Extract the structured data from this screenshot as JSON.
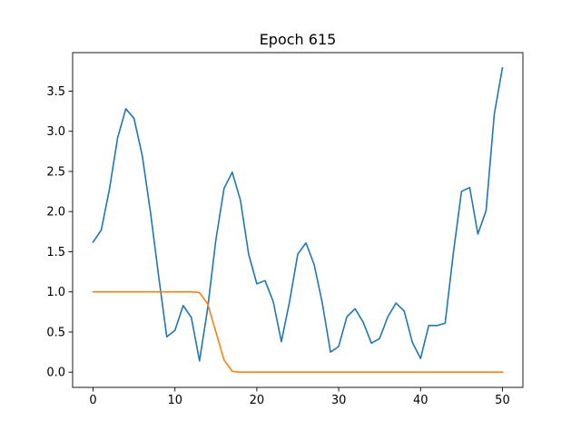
{
  "chart_data": {
    "type": "line",
    "title": "Epoch 615",
    "xlabel": "",
    "ylabel": "",
    "xlim": [
      -2.5,
      52.5
    ],
    "ylim": [
      -0.19,
      3.98
    ],
    "grid": false,
    "x_ticks": [
      0,
      10,
      20,
      30,
      40,
      50
    ],
    "y_ticks": [
      0.0,
      0.5,
      1.0,
      1.5,
      2.0,
      2.5,
      3.0,
      3.5
    ],
    "x_tick_labels": [
      "0",
      "10",
      "20",
      "30",
      "40",
      "50"
    ],
    "y_tick_labels": [
      "0.0",
      "0.5",
      "1.0",
      "1.5",
      "2.0",
      "2.5",
      "3.0",
      "3.5"
    ],
    "x": [
      0,
      1,
      2,
      3,
      4,
      5,
      6,
      7,
      8,
      9,
      10,
      11,
      12,
      13,
      14,
      15,
      16,
      17,
      18,
      19,
      20,
      21,
      22,
      23,
      24,
      25,
      26,
      27,
      28,
      29,
      30,
      31,
      32,
      33,
      34,
      35,
      36,
      37,
      38,
      39,
      40,
      41,
      42,
      43,
      44,
      45,
      46,
      47,
      48,
      49,
      50
    ],
    "series": [
      {
        "color": "#1f77b4",
        "values": [
          1.62,
          1.77,
          2.28,
          2.92,
          3.28,
          3.16,
          2.7,
          2.0,
          1.2,
          0.44,
          0.52,
          0.83,
          0.68,
          0.14,
          0.8,
          1.65,
          2.29,
          2.49,
          2.14,
          1.47,
          1.1,
          1.14,
          0.88,
          0.38,
          0.88,
          1.47,
          1.61,
          1.34,
          0.86,
          0.25,
          0.32,
          0.69,
          0.79,
          0.62,
          0.36,
          0.42,
          0.69,
          0.86,
          0.76,
          0.37,
          0.17,
          0.58,
          0.58,
          0.61,
          1.48,
          2.25,
          2.3,
          1.72,
          2.01,
          3.21,
          3.79
        ]
      },
      {
        "color": "#ff7f0e",
        "values": [
          1.0,
          1.0,
          1.0,
          1.0,
          1.0,
          1.0,
          1.0,
          1.0,
          1.0,
          1.0,
          1.0,
          1.0,
          1.0,
          0.99,
          0.85,
          0.5,
          0.15,
          0.01,
          0.0,
          0.0,
          0.0,
          0.0,
          0.0,
          0.0,
          0.0,
          0.0,
          0.0,
          0.0,
          0.0,
          0.0,
          0.0,
          0.0,
          0.0,
          0.0,
          0.0,
          0.0,
          0.0,
          0.0,
          0.0,
          0.0,
          0.0,
          0.0,
          0.0,
          0.0,
          0.0,
          0.0,
          0.0,
          0.0,
          0.0,
          0.0,
          0.0
        ]
      }
    ]
  }
}
